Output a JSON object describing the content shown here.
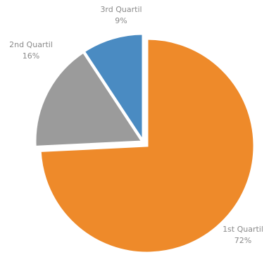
{
  "chart_data": {
    "type": "pie",
    "categories": [
      "1st Quartil",
      "2nd Quartil",
      "3rd Quartil"
    ],
    "values": [
      72,
      16,
      9
    ],
    "value_labels": [
      "72%",
      "16%",
      "9%"
    ],
    "colors": [
      "#ee8a2a",
      "#9b9b9b",
      "#4a8bc2"
    ]
  }
}
